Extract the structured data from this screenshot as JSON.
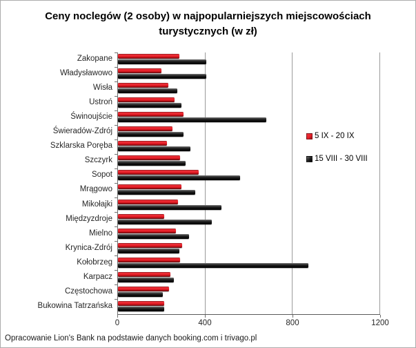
{
  "title": "Ceny noclegów (2 osoby) w najpopularniejszych miejscowościach turystycznych (w zł)",
  "footer": "Opracowanie Lion's Bank na podstawie danych booking.com i trivago.pl",
  "colors": {
    "series_september": "#e8202a",
    "series_august": "#1a1a1a",
    "gridline": "#9a9a9a",
    "axis": "#6e6e6e"
  },
  "chart_data": {
    "type": "bar",
    "orientation": "horizontal",
    "title": "Ceny noclegów (2 osoby) w najpopularniejszych miejscowościach turystycznych (w zł)",
    "categories": [
      "Zakopane",
      "Władysławowo",
      "Wisła",
      "Ustroń",
      "Świnoujście",
      "Świeradów-Zdrój",
      "Szklarska Poręba",
      "Szczyrk",
      "Sopot",
      "Mrągowo",
      "Mikołajki",
      "Międzyzdroje",
      "Mielno",
      "Krynica-Zdrój",
      "Kołobrzeg",
      "Karpacz",
      "Częstochowa",
      "Bukowina Tatrzańska"
    ],
    "series": [
      {
        "name": "5 IX - 20 IX",
        "color": "#e8202a",
        "values": [
          280,
          200,
          230,
          260,
          300,
          250,
          225,
          285,
          370,
          290,
          275,
          210,
          265,
          295,
          285,
          240,
          235,
          210
        ]
      },
      {
        "name": "15 VIII - 30 VIII",
        "color": "#1a1a1a",
        "values": [
          405,
          405,
          270,
          290,
          680,
          300,
          330,
          310,
          560,
          355,
          475,
          430,
          325,
          280,
          870,
          255,
          205,
          210
        ]
      }
    ],
    "xlim": [
      0,
      1200
    ],
    "x_ticks": [
      0,
      400,
      800,
      1200
    ],
    "grid": "vertical-gridlines-on",
    "legend_position": "right-inside"
  }
}
